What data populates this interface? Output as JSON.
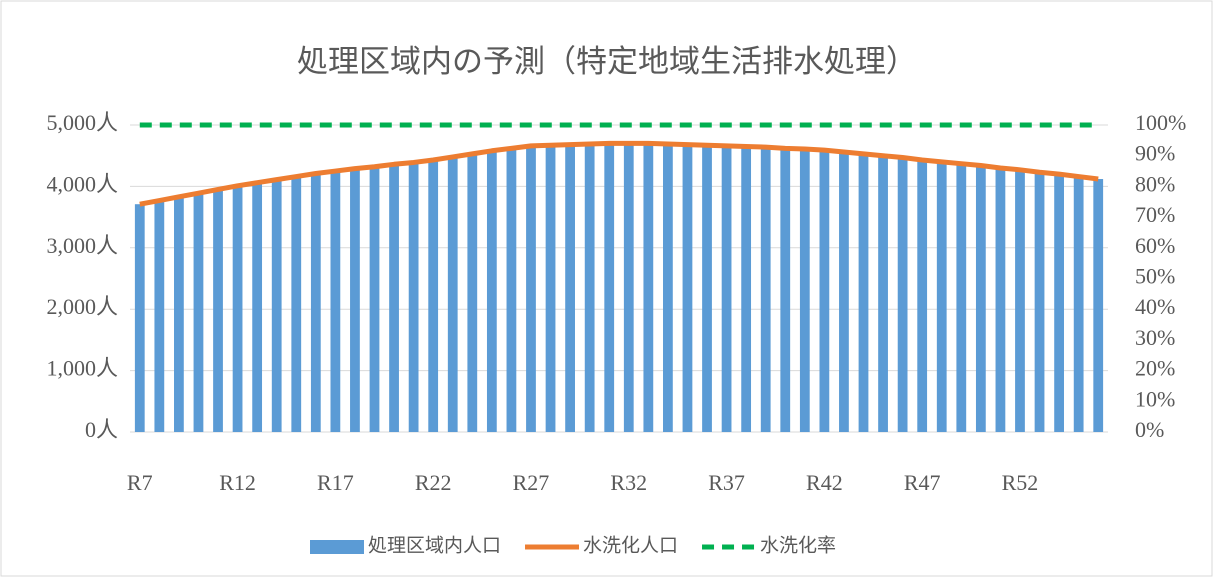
{
  "chart_data": {
    "type": "bar_line",
    "title": "処理区域内の予測（特定地域生活排水処理）",
    "categories": [
      "R7",
      null,
      null,
      null,
      null,
      "R12",
      null,
      null,
      null,
      null,
      "R17",
      null,
      null,
      null,
      null,
      "R22",
      null,
      null,
      null,
      null,
      "R27",
      null,
      null,
      null,
      null,
      "R32",
      null,
      null,
      null,
      null,
      "R37",
      null,
      null,
      null,
      null,
      "R42",
      null,
      null,
      null,
      null,
      "R47",
      null,
      null,
      null,
      null,
      "R52",
      null,
      null,
      null,
      null
    ],
    "series": [
      {
        "name": "処理区域内人口",
        "type": "bar",
        "color": "#5b9bd5",
        "values": [
          3710,
          3770,
          3830,
          3890,
          3950,
          4010,
          4060,
          4110,
          4160,
          4210,
          4250,
          4290,
          4320,
          4360,
          4390,
          4430,
          4480,
          4530,
          4580,
          4620,
          4660,
          4670,
          4680,
          4690,
          4700,
          4700,
          4700,
          4690,
          4680,
          4670,
          4660,
          4650,
          4640,
          4620,
          4610,
          4590,
          4560,
          4530,
          4500,
          4470,
          4430,
          4400,
          4370,
          4340,
          4300,
          4270,
          4230,
          4200,
          4160,
          4120
        ]
      },
      {
        "name": "水洗化人口",
        "type": "line",
        "color": "#ed7d31",
        "values": [
          3710,
          3770,
          3830,
          3890,
          3950,
          4010,
          4060,
          4110,
          4160,
          4210,
          4250,
          4290,
          4320,
          4360,
          4390,
          4430,
          4480,
          4530,
          4580,
          4620,
          4660,
          4670,
          4680,
          4690,
          4700,
          4700,
          4700,
          4690,
          4680,
          4670,
          4660,
          4650,
          4640,
          4620,
          4610,
          4590,
          4560,
          4530,
          4500,
          4470,
          4430,
          4400,
          4370,
          4340,
          4300,
          4270,
          4230,
          4200,
          4160,
          4120
        ]
      },
      {
        "name": "水洗化率",
        "type": "dashed",
        "axis": "y2",
        "color": "#00b050",
        "values": [
          100,
          100,
          100,
          100,
          100,
          100,
          100,
          100,
          100,
          100,
          100,
          100,
          100,
          100,
          100,
          100,
          100,
          100,
          100,
          100,
          100,
          100,
          100,
          100,
          100,
          100,
          100,
          100,
          100,
          100,
          100,
          100,
          100,
          100,
          100,
          100,
          100,
          100,
          100,
          100,
          100,
          100,
          100,
          100,
          100,
          100,
          100,
          100,
          100,
          100
        ]
      }
    ],
    "ylim": [
      0,
      5000
    ],
    "yticks": [
      {
        "value": 0,
        "label": "0人"
      },
      {
        "value": 1000,
        "label": "1,000人"
      },
      {
        "value": 2000,
        "label": "2,000人"
      },
      {
        "value": 3000,
        "label": "3,000人"
      },
      {
        "value": 4000,
        "label": "4,000人"
      },
      {
        "value": 5000,
        "label": "5,000人"
      }
    ],
    "y2lim": [
      0,
      100
    ],
    "y2ticks": [
      {
        "value": 0,
        "label": "0%"
      },
      {
        "value": 10,
        "label": "10%"
      },
      {
        "value": 20,
        "label": "20%"
      },
      {
        "value": 30,
        "label": "30%"
      },
      {
        "value": 40,
        "label": "40%"
      },
      {
        "value": 50,
        "label": "50%"
      },
      {
        "value": 60,
        "label": "60%"
      },
      {
        "value": 70,
        "label": "70%"
      },
      {
        "value": 80,
        "label": "80%"
      },
      {
        "value": 90,
        "label": "90%"
      },
      {
        "value": 100,
        "label": "100%"
      }
    ],
    "legend": "bottom"
  }
}
